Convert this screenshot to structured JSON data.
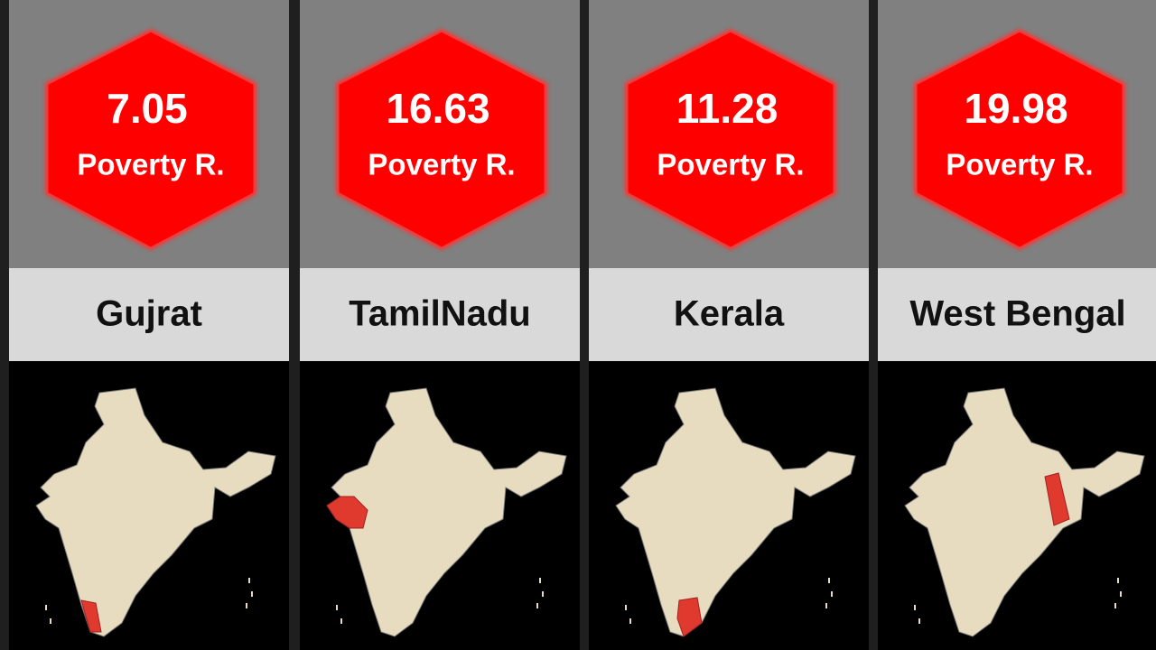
{
  "panels": [
    {
      "value": 7.05,
      "label": "Poverty R.",
      "state": "Gujrat"
    },
    {
      "value": 16.63,
      "label": "Poverty R.",
      "state": "TamilNadu"
    },
    {
      "value": 11.28,
      "label": "Poverty R.",
      "state": "Kerala"
    },
    {
      "value": 19.98,
      "label": "Poverty R.",
      "state": "West Bengal"
    }
  ]
}
